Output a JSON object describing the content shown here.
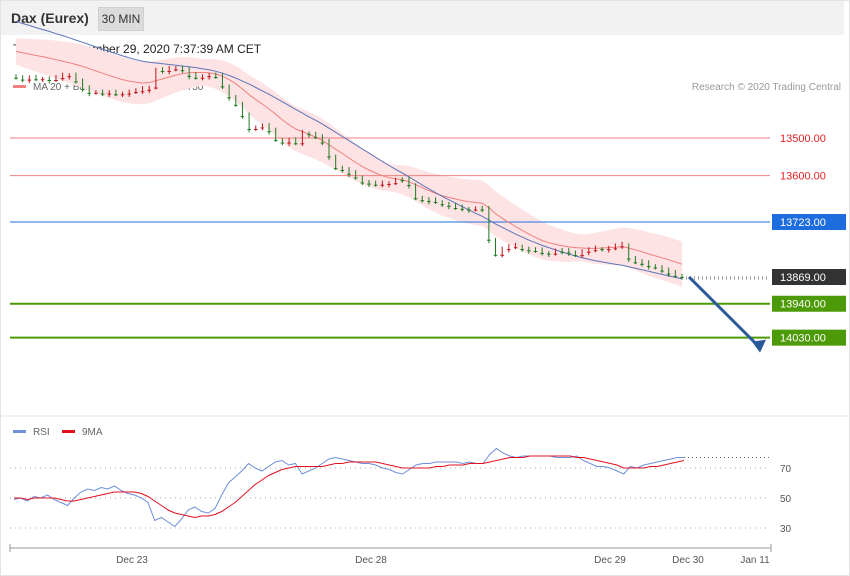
{
  "header": {
    "title": "Dax (Eurex)",
    "timeframe": "30 MIN"
  },
  "datetime": "Tuesday, December 29, 2020 7:37:39 AM CET",
  "legend": {
    "ma20": "MA 20 + Bollinger Bands",
    "ma50": "MA 50"
  },
  "credit": "Research © 2020 Trading Central",
  "colors": {
    "up": "#1e7a22",
    "down": "#c0141c",
    "target": "#4d9a08",
    "pivot": "#1e6ddf",
    "support": "#f07f7f",
    "last": "#333333",
    "band": "#fde3e3",
    "ma20": "#f08080",
    "ma50": "#5d74b8",
    "arrow": "#2a5a9a",
    "rsi": "#6f8fd9",
    "rsi_ma": "#e01020"
  },
  "chart_data": [
    {
      "type": "candlestick",
      "levels": [
        {
          "value": 14030.0,
          "label": "14030.00",
          "kind": "target"
        },
        {
          "value": 13940.0,
          "label": "13940.00",
          "kind": "target"
        },
        {
          "value": 13869.0,
          "label": "13869.00",
          "kind": "last"
        },
        {
          "value": 13723.0,
          "label": "13723.00",
          "kind": "pivot"
        },
        {
          "value": 13600.0,
          "label": "13600.00",
          "kind": "support"
        },
        {
          "value": 13500.0,
          "label": "13500.00",
          "kind": "support"
        }
      ],
      "x_ticks": [
        "Dec 23",
        "Dec 28",
        "Dec 29",
        "Dec 30",
        "Jan 11"
      ],
      "close": [
        13340,
        13345,
        13342,
        13344,
        13343,
        13346,
        13341,
        13336,
        13333,
        13350,
        13370,
        13380,
        13378,
        13382,
        13381,
        13384,
        13382,
        13378,
        13376,
        13372,
        13366,
        13320,
        13322,
        13318,
        13314,
        13320,
        13335,
        13340,
        13336,
        13334,
        13338,
        13363,
        13392,
        13412,
        13442,
        13476,
        13472,
        13468,
        13482,
        13505,
        13512,
        13506,
        13514,
        13488,
        13490,
        13498,
        13512,
        13549,
        13580,
        13585,
        13595,
        13605,
        13618,
        13621,
        13624,
        13622,
        13620,
        13612,
        13612,
        13625,
        13660,
        13665,
        13667,
        13670,
        13676,
        13680,
        13686,
        13688,
        13690,
        13688,
        13690,
        13770,
        13810,
        13795,
        13790,
        13788,
        13795,
        13798,
        13800,
        13805,
        13807,
        13800,
        13802,
        13804,
        13811,
        13802,
        13798,
        13795,
        13795,
        13793,
        13788,
        13785,
        13820,
        13830,
        13834,
        13840,
        13844,
        13852,
        13860,
        13866,
        13869
      ],
      "ma20": [
        13270,
        13274,
        13277,
        13281,
        13284,
        13288,
        13292,
        13296,
        13300,
        13305,
        13310,
        13316,
        13322,
        13328,
        13334,
        13340,
        13345,
        13349,
        13352,
        13354,
        13353,
        13348,
        13343,
        13338,
        13333,
        13329,
        13327,
        13326,
        13326,
        13327,
        13330,
        13336,
        13345,
        13356,
        13370,
        13385,
        13398,
        13410,
        13423,
        13437,
        13452,
        13465,
        13476,
        13483,
        13490,
        13498,
        13507,
        13518,
        13530,
        13541,
        13553,
        13565,
        13576,
        13585,
        13593,
        13600,
        13605,
        13608,
        13611,
        13616,
        13624,
        13632,
        13640,
        13647,
        13653,
        13658,
        13662,
        13666,
        13669,
        13671,
        13673,
        13685,
        13701,
        13713,
        13724,
        13735,
        13745,
        13755,
        13764,
        13772,
        13778,
        13782,
        13786,
        13789,
        13791,
        13792,
        13793,
        13793,
        13792,
        13791,
        13790,
        13788,
        13792,
        13797,
        13802,
        13808,
        13813,
        13818,
        13823,
        13829,
        13835
      ],
      "ma50": [
        13190,
        13196,
        13201,
        13207,
        13212,
        13217,
        13223,
        13228,
        13234,
        13240,
        13246,
        13252,
        13258,
        13264,
        13270,
        13276,
        13282,
        13287,
        13292,
        13296,
        13299,
        13301,
        13303,
        13305,
        13307,
        13309,
        13311,
        13313,
        13316,
        13319,
        13323,
        13328,
        13334,
        13341,
        13349,
        13357,
        13366,
        13375,
        13384,
        13394,
        13404,
        13414,
        13424,
        13434,
        13444,
        13453,
        13463,
        13474,
        13485,
        13496,
        13507,
        13518,
        13529,
        13540,
        13551,
        13562,
        13573,
        13583,
        13593,
        13603,
        13614,
        13625,
        13635,
        13645,
        13655,
        13664,
        13673,
        13682,
        13691,
        13700,
        13708,
        13718,
        13728,
        13737,
        13746,
        13755,
        13763,
        13771,
        13778,
        13785,
        13791,
        13797,
        13803,
        13808,
        13813,
        13818,
        13822,
        13826,
        13829,
        13832,
        13835,
        13838,
        13842,
        13846,
        13850,
        13854,
        13858,
        13862,
        13866,
        13870,
        13874
      ]
    },
    {
      "type": "line",
      "legend": [
        "RSI",
        "9MA"
      ],
      "y_ticks": [
        70,
        50,
        30
      ],
      "rsi": [
        49,
        50,
        48,
        51,
        50,
        52,
        49,
        47,
        45,
        50,
        54,
        56,
        55,
        57,
        56,
        58,
        55,
        53,
        52,
        50,
        47,
        35,
        37,
        34,
        31,
        36,
        42,
        44,
        41,
        40,
        43,
        52,
        60,
        64,
        68,
        73,
        70,
        68,
        71,
        74,
        75,
        72,
        73,
        66,
        68,
        70,
        73,
        76,
        77,
        76,
        75,
        74,
        73,
        73,
        72,
        70,
        69,
        67,
        66,
        69,
        72,
        73,
        73,
        74,
        74,
        74,
        74,
        73,
        74,
        73,
        73,
        79,
        83,
        80,
        78,
        77,
        78,
        78,
        78,
        78,
        78,
        77,
        77,
        77,
        78,
        75,
        73,
        71,
        71,
        70,
        68,
        66,
        71,
        70,
        72,
        73,
        74,
        75,
        76,
        77,
        77
      ],
      "rsi_ma": [
        50,
        50,
        49,
        50,
        50,
        50,
        50,
        49,
        48,
        48,
        49,
        50,
        51,
        52,
        53,
        54,
        54,
        54,
        54,
        53,
        51,
        48,
        45,
        42,
        40,
        39,
        38,
        37,
        38,
        38,
        39,
        41,
        44,
        47,
        51,
        55,
        59,
        62,
        65,
        67,
        69,
        70,
        71,
        71,
        71,
        71,
        71,
        72,
        73,
        73,
        74,
        74,
        74,
        74,
        74,
        73,
        72,
        71,
        70,
        70,
        70,
        70,
        70,
        71,
        71,
        72,
        72,
        72,
        73,
        73,
        73,
        74,
        75,
        76,
        77,
        77,
        77,
        78,
        78,
        78,
        78,
        78,
        78,
        78,
        77,
        77,
        76,
        75,
        74,
        73,
        72,
        70,
        70,
        70,
        70,
        71,
        71,
        72,
        73,
        74,
        75
      ]
    }
  ]
}
